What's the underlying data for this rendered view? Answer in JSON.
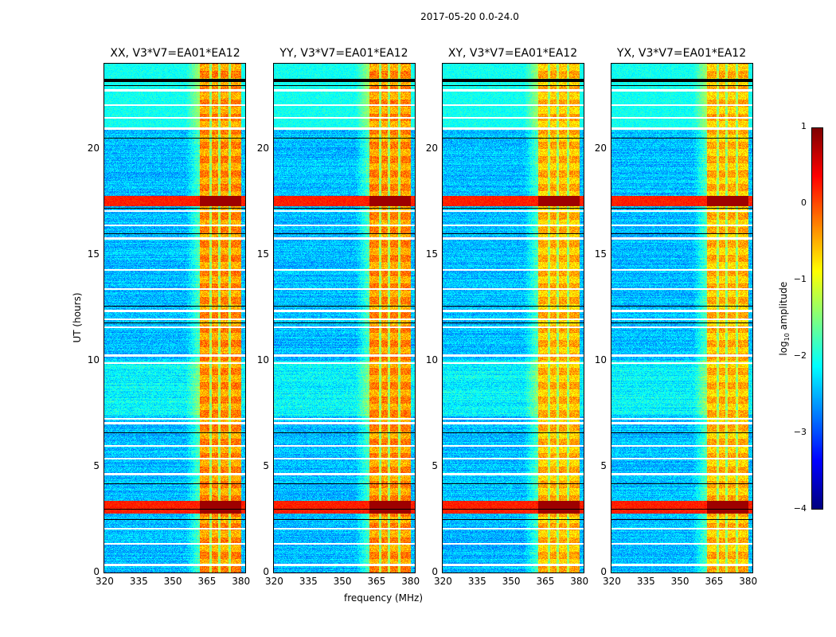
{
  "chart_data": {
    "type": "heatmap",
    "title": "2017-05-20 0.0-24.0",
    "xlabel": "frequency (MHz)",
    "ylabel": "UT (hours)",
    "xlim": [
      320,
      382
    ],
    "ylim": [
      0,
      24
    ],
    "xticks": [
      320,
      335,
      350,
      365,
      380
    ],
    "yticks": [
      0,
      5,
      10,
      15,
      20
    ],
    "panels": [
      {
        "title": "XX, V3*V7=EA01*EA12",
        "polarization": "XX"
      },
      {
        "title": "YY, V3*V7=EA01*EA12",
        "polarization": "YY"
      },
      {
        "title": "XY, V3*V7=EA01*EA12",
        "polarization": "XY"
      },
      {
        "title": "YX, V3*V7=EA01*EA12",
        "polarization": "YX"
      }
    ],
    "colorbar": {
      "label": "log10 amplitude",
      "label_main": "log",
      "label_sub": "10",
      "label_rest": " amplitude",
      "colormap": "jet",
      "vmin": -4,
      "vmax": 1,
      "ticks": [
        1,
        0,
        -1,
        -2,
        -3,
        -4
      ],
      "tick_labels": [
        "1",
        "0",
        "−1",
        "−2",
        "−3",
        "−4"
      ]
    },
    "features": {
      "rfi_band_mhz": [
        362,
        380
      ],
      "rfi_subband_gaps_mhz": [
        366.5,
        370.5,
        375
      ],
      "strong_rfi_ut_hours": [
        [
          2.8,
          3.4
        ],
        [
          17.3,
          17.8
        ]
      ],
      "flagged_gaps_ut_hours": [
        0.4,
        1.4,
        2.1,
        4.7,
        5.4,
        6.0,
        7.1,
        7.3,
        9.9,
        10.3,
        11.6,
        12.0,
        12.4,
        13.4,
        14.3,
        15.8,
        16.4,
        17.1,
        21.0,
        21.5,
        22.1,
        22.8,
        23.3
      ]
    }
  }
}
